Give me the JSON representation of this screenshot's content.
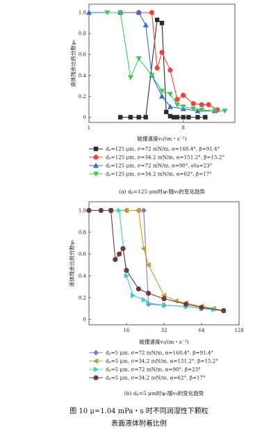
{
  "chart_data": [
    {
      "type": "line",
      "x_scale": "log2",
      "xlabel": "碰撞速度v₀/(m・s⁻¹)",
      "ylabel": "液体残余比例分数ψᵣ",
      "xticks": [
        "1",
        "8"
      ],
      "yticks": [
        "0",
        "0.2",
        "0.4",
        "0.6",
        "0.8",
        "1.0"
      ],
      "xlim": [
        1,
        25
      ],
      "ylim": [
        -0.05,
        1.08
      ],
      "caption": "(a) dₚ=125 μm时ψᵣ随v₀的变化趋势",
      "series": [
        {
          "name": "dₚ=125 μm, σ=72 mN/m, α=168.4°, β=91.4°",
          "color": "#2b2b2b",
          "marker": "square",
          "x": [
            2,
            2.5,
            3,
            3.5,
            4.5,
            5,
            5.5,
            6,
            6.5,
            7,
            8,
            9,
            11,
            13
          ],
          "y": [
            0,
            0,
            0,
            0,
            0.93,
            0.9,
            0.05,
            0.01,
            0,
            0,
            0,
            0,
            0,
            0
          ]
        },
        {
          "name": "dₚ=125 μm, σ=34.2 mN/m, α=151.2°, β=15.2°",
          "color": "#e8453c",
          "marker": "circle",
          "x": [
            2,
            3,
            4,
            4.5,
            5,
            6,
            7,
            8,
            10,
            12,
            14,
            17
          ],
          "y": [
            1.0,
            1.0,
            1.0,
            0.47,
            0.62,
            0.45,
            0.17,
            0.21,
            0.13,
            0.12,
            0.12,
            0.07
          ]
        },
        {
          "name": "dₚ=125 μm, σ=72 mN/m, α=90°, \beta=23°",
          "color": "#2f6fd0",
          "marker": "triangle-up",
          "x": [
            1,
            2,
            3,
            3.5,
            4,
            5,
            6,
            8,
            11,
            16
          ],
          "y": [
            1.0,
            1.0,
            1.0,
            0.88,
            0.4,
            0.2,
            0.1,
            0.08,
            0.06,
            0.06
          ]
        },
        {
          "name": "dₚ=125 μm, σ=34.2 mN/m, α=62°, β=17°",
          "color": "#3fc85f",
          "marker": "triangle-down",
          "x": [
            1.5,
            2,
            2.5,
            3,
            4,
            5,
            6,
            7,
            8,
            10,
            12,
            16,
            20
          ],
          "y": [
            1.0,
            1.0,
            0.38,
            0.56,
            0.4,
            0.25,
            0.22,
            0.12,
            0.1,
            0.08,
            0.07,
            0.06,
            0.06
          ]
        }
      ]
    },
    {
      "type": "line",
      "x_scale": "log2",
      "xlabel": "碰撞速度v₀/(m・s⁻¹)",
      "ylabel": "液体残余比例分数ψᵣ",
      "xticks": [
        "16",
        "32",
        "64",
        "128"
      ],
      "yticks": [
        "0",
        "0.2",
        "0.4",
        "0.6",
        "0.8",
        "1.0"
      ],
      "xlim": [
        8,
        128
      ],
      "ylim": [
        -0.05,
        1.08
      ],
      "caption": "(b) dₚ=5 μm时ψᵣ随v₀的变化趋势",
      "series": [
        {
          "name": "dₚ=5 μm, σ=72 mN/m, α=168.4°, β=91.4°",
          "color": "#8a77c2",
          "marker": "diamond",
          "x": [
            8,
            12,
            16,
            20,
            22,
            24,
            32,
            48,
            64,
            96
          ],
          "y": [
            1.0,
            1.0,
            1.0,
            1.0,
            1.0,
            0.14,
            0.13,
            0.12,
            0.1,
            0.08
          ]
        },
        {
          "name": "dₚ=5 μm, σ=34.2 mN/m, α=151.2°, β=15.2°",
          "color": "#c79a2e",
          "marker": "triangle-left",
          "x": [
            12,
            16,
            20,
            22,
            24,
            32,
            40,
            48,
            64,
            80,
            96
          ],
          "y": [
            1.0,
            1.0,
            1.0,
            0.65,
            0.5,
            0.22,
            0.17,
            0.15,
            0.12,
            0.1,
            0.08
          ]
        },
        {
          "name": "dₚ=5 μm, σ=72 mN/m, α=90°, β=23°",
          "color": "#3ecfc8",
          "marker": "triangle-right",
          "x": [
            12,
            14,
            16,
            18,
            22,
            24,
            32,
            48,
            64,
            80
          ],
          "y": [
            1.0,
            1.0,
            0.4,
            0.22,
            0.18,
            0.15,
            0.13,
            0.12,
            0.1,
            0.09
          ]
        },
        {
          "name": "dₚ=5 μm, σ=34.2 mN/m, α=62°, β=17°",
          "color": "#6b3b3b",
          "marker": "circle",
          "x": [
            8,
            10,
            12,
            13,
            14,
            15,
            16,
            20,
            24,
            32,
            48,
            64,
            96
          ],
          "y": [
            1.0,
            1.0,
            1.0,
            0.55,
            0.6,
            0.65,
            0.45,
            0.28,
            0.24,
            0.19,
            0.14,
            0.11,
            0.08
          ]
        }
      ]
    }
  ],
  "figure_caption_line1": "图 10    μ=1.04 mPa・s 时不同润湿性下颗粒",
  "figure_caption_line2": "表面液体附着比例"
}
